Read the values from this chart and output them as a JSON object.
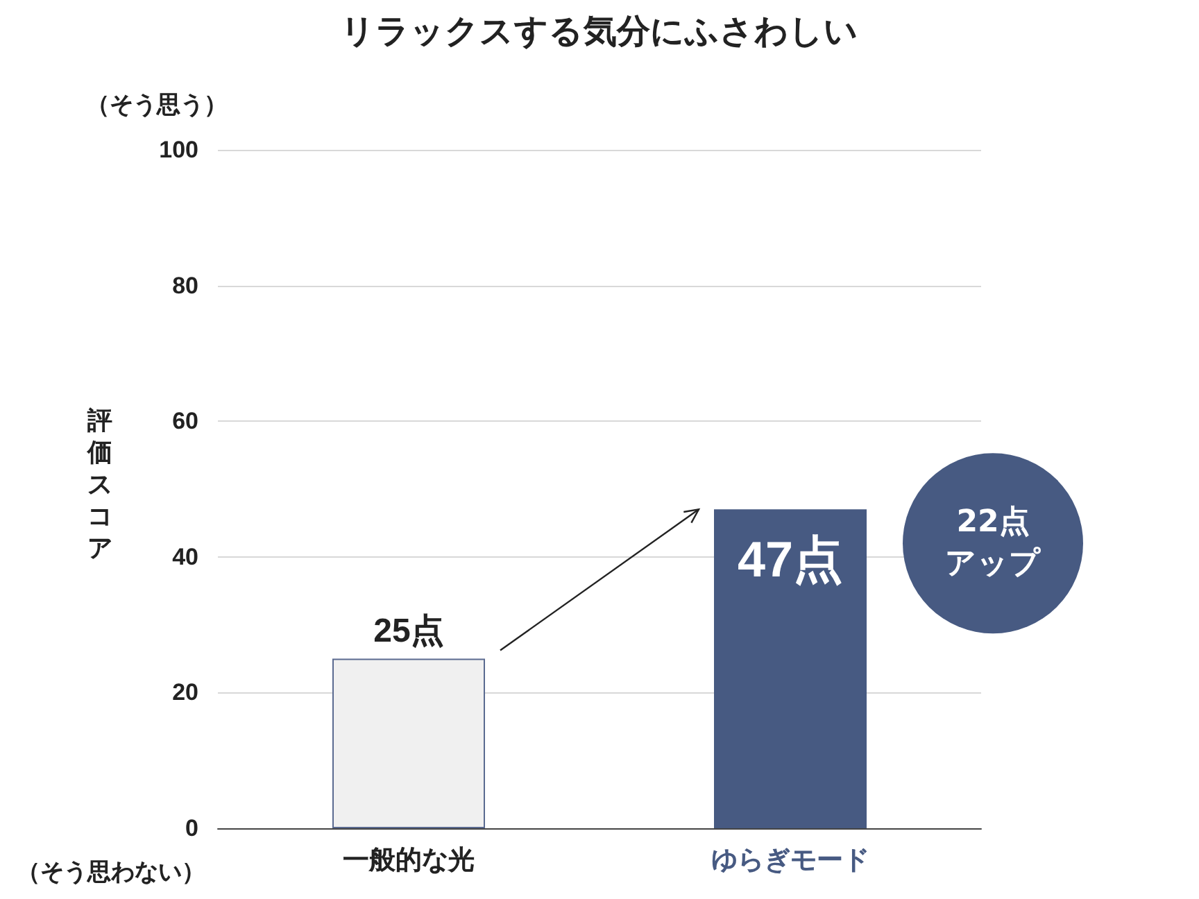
{
  "chart_data": {
    "type": "bar",
    "title": "リラックスする気分にふさわしい",
    "ylabel": "評価スコア",
    "categories": [
      "一般的な光",
      "ゆらぎモード"
    ],
    "values": [
      25,
      47
    ],
    "colors": [
      "#f0f0f0",
      "#475a82"
    ],
    "value_labels": [
      "25点",
      "47点"
    ],
    "ylim": [
      0,
      100
    ],
    "yticks": [
      0,
      20,
      40,
      60,
      80,
      100
    ],
    "grid": "y",
    "annotations": [
      "（そう思う）",
      "（そう思わない）",
      "22点アップ"
    ]
  }
}
